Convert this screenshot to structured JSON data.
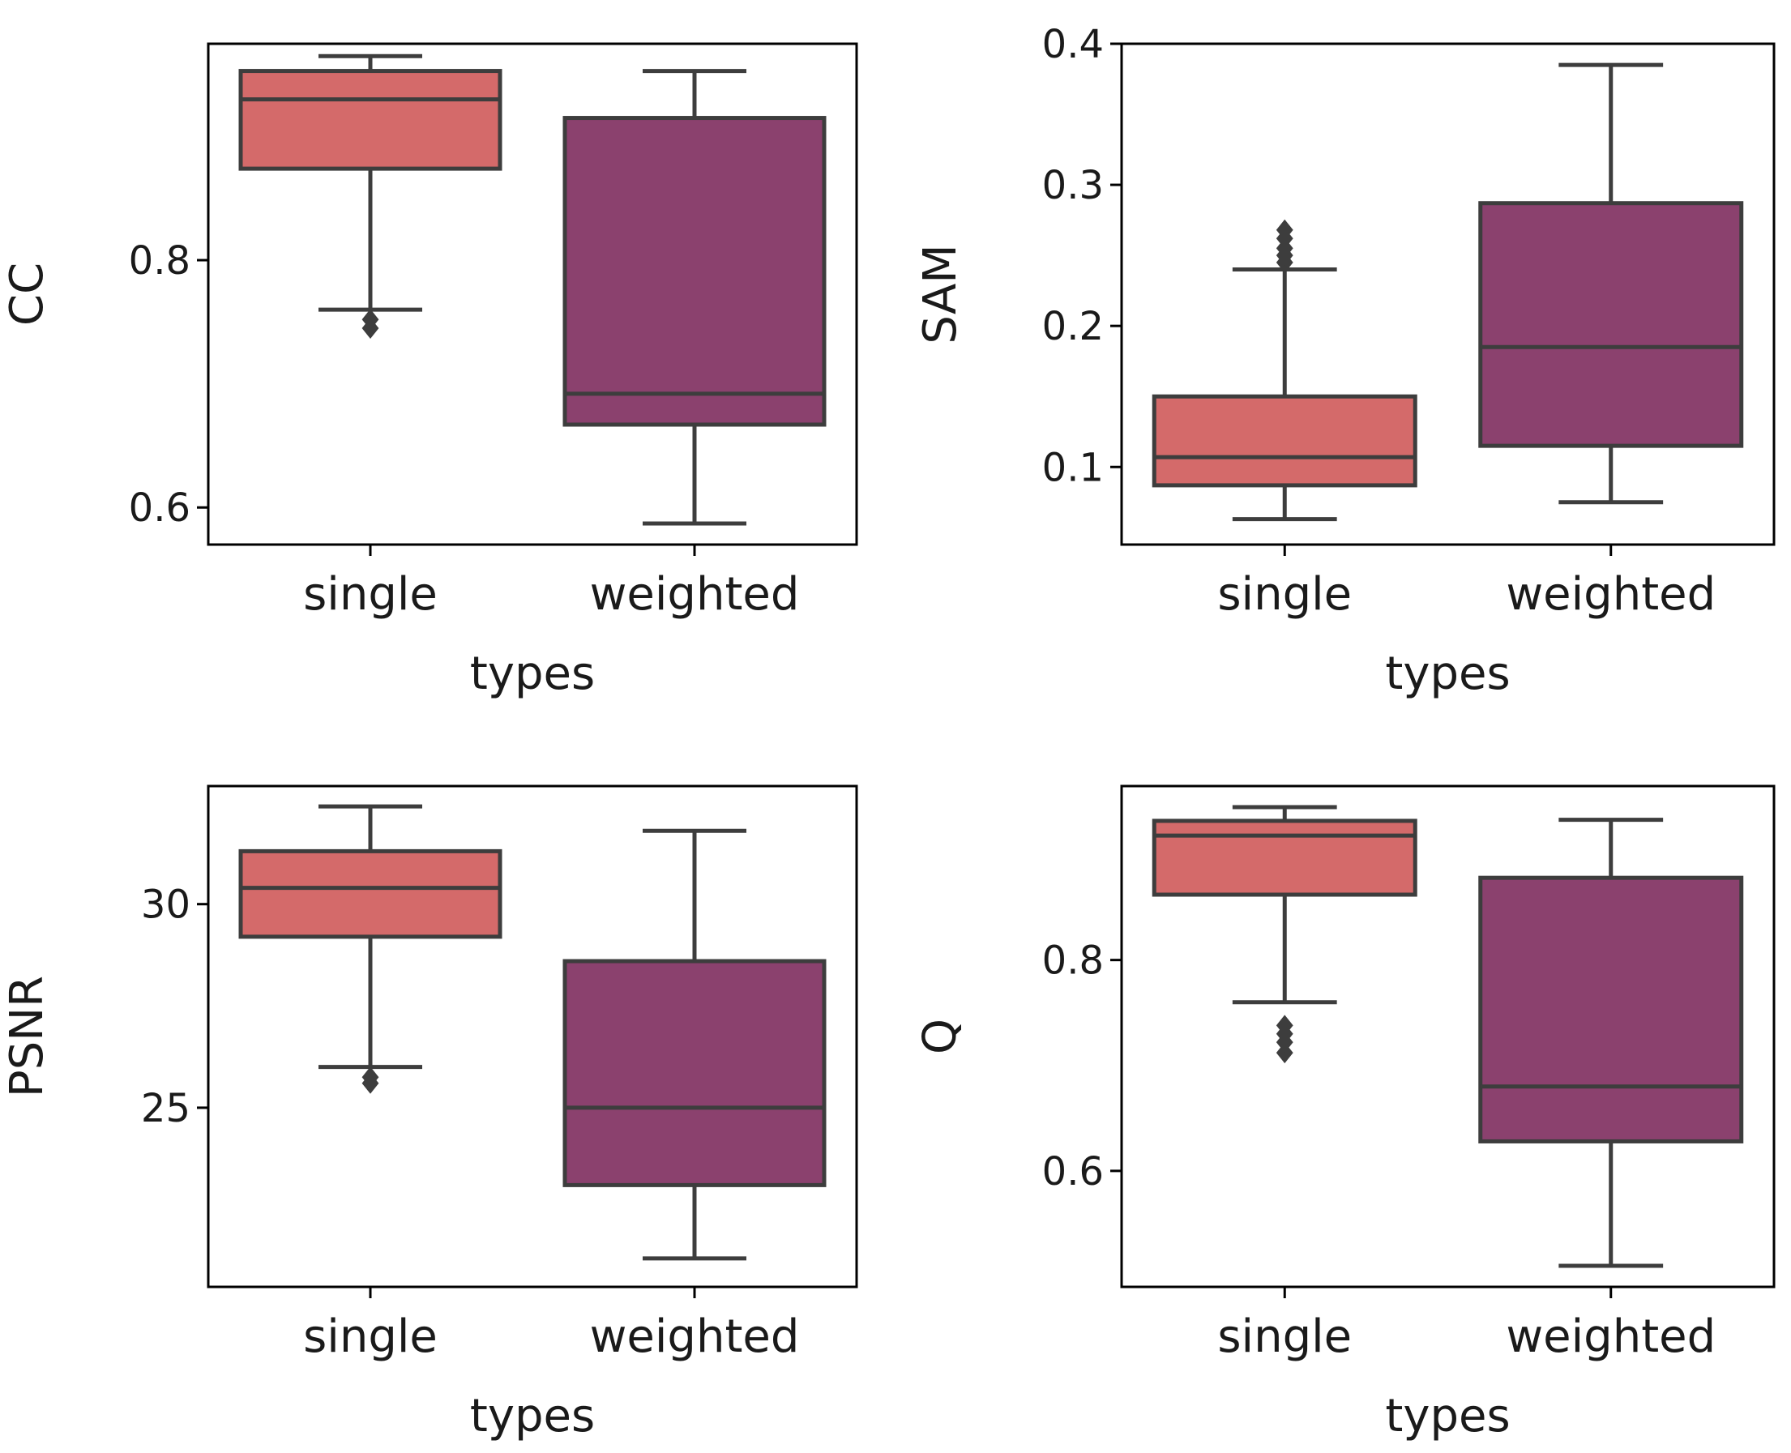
{
  "chart_data": [
    {
      "type": "box",
      "xlabel": "types",
      "ylabel": "CC",
      "ylim": [
        0.57,
        0.975
      ],
      "yticks": [
        0.6,
        0.8
      ],
      "tick_labels": [
        "0.6",
        "0.8"
      ],
      "categories": [
        "single",
        "weighted"
      ],
      "series": [
        {
          "name": "single",
          "color": "#d46a6a",
          "whisker_low": 0.76,
          "q1": 0.874,
          "median": 0.93,
          "q3": 0.953,
          "whisker_high": 0.965,
          "outliers": [
            0.745,
            0.752
          ]
        },
        {
          "name": "weighted",
          "color": "#8b416e",
          "whisker_low": 0.587,
          "q1": 0.667,
          "median": 0.692,
          "q3": 0.915,
          "whisker_high": 0.953,
          "outliers": []
        }
      ]
    },
    {
      "type": "box",
      "xlabel": "types",
      "ylabel": "SAM",
      "ylim": [
        0.045,
        0.4
      ],
      "yticks": [
        0.1,
        0.2,
        0.3,
        0.4
      ],
      "tick_labels": [
        "0.1",
        "0.2",
        "0.3",
        "0.4"
      ],
      "categories": [
        "single",
        "weighted"
      ],
      "series": [
        {
          "name": "single",
          "color": "#d46a6a",
          "whisker_low": 0.063,
          "q1": 0.087,
          "median": 0.107,
          "q3": 0.15,
          "whisker_high": 0.24,
          "outliers": [
            0.245,
            0.25,
            0.255,
            0.262,
            0.268
          ]
        },
        {
          "name": "weighted",
          "color": "#8b416e",
          "whisker_low": 0.075,
          "q1": 0.115,
          "median": 0.185,
          "q3": 0.287,
          "whisker_high": 0.385,
          "outliers": []
        }
      ]
    },
    {
      "type": "box",
      "xlabel": "types",
      "ylabel": "PSNR",
      "ylim": [
        20.6,
        32.9
      ],
      "yticks": [
        25,
        30
      ],
      "tick_labels": [
        "25",
        "30"
      ],
      "categories": [
        "single",
        "weighted"
      ],
      "series": [
        {
          "name": "single",
          "color": "#d46a6a",
          "whisker_low": 26.0,
          "q1": 29.2,
          "median": 30.4,
          "q3": 31.3,
          "whisker_high": 32.4,
          "outliers": [
            25.6,
            25.75
          ]
        },
        {
          "name": "weighted",
          "color": "#8b416e",
          "whisker_low": 21.3,
          "q1": 23.1,
          "median": 25.0,
          "q3": 28.6,
          "whisker_high": 31.8,
          "outliers": []
        }
      ]
    },
    {
      "type": "box",
      "xlabel": "types",
      "ylabel": "Q",
      "ylim": [
        0.49,
        0.965
      ],
      "yticks": [
        0.6,
        0.8
      ],
      "tick_labels": [
        "0.6",
        "0.8"
      ],
      "categories": [
        "single",
        "weighted"
      ],
      "series": [
        {
          "name": "single",
          "color": "#d46a6a",
          "whisker_low": 0.76,
          "q1": 0.862,
          "median": 0.918,
          "q3": 0.932,
          "whisker_high": 0.945,
          "outliers": [
            0.712,
            0.722,
            0.73,
            0.738
          ]
        },
        {
          "name": "weighted",
          "color": "#8b416e",
          "whisker_low": 0.51,
          "q1": 0.628,
          "median": 0.68,
          "q3": 0.878,
          "whisker_high": 0.933,
          "outliers": []
        }
      ]
    }
  ]
}
